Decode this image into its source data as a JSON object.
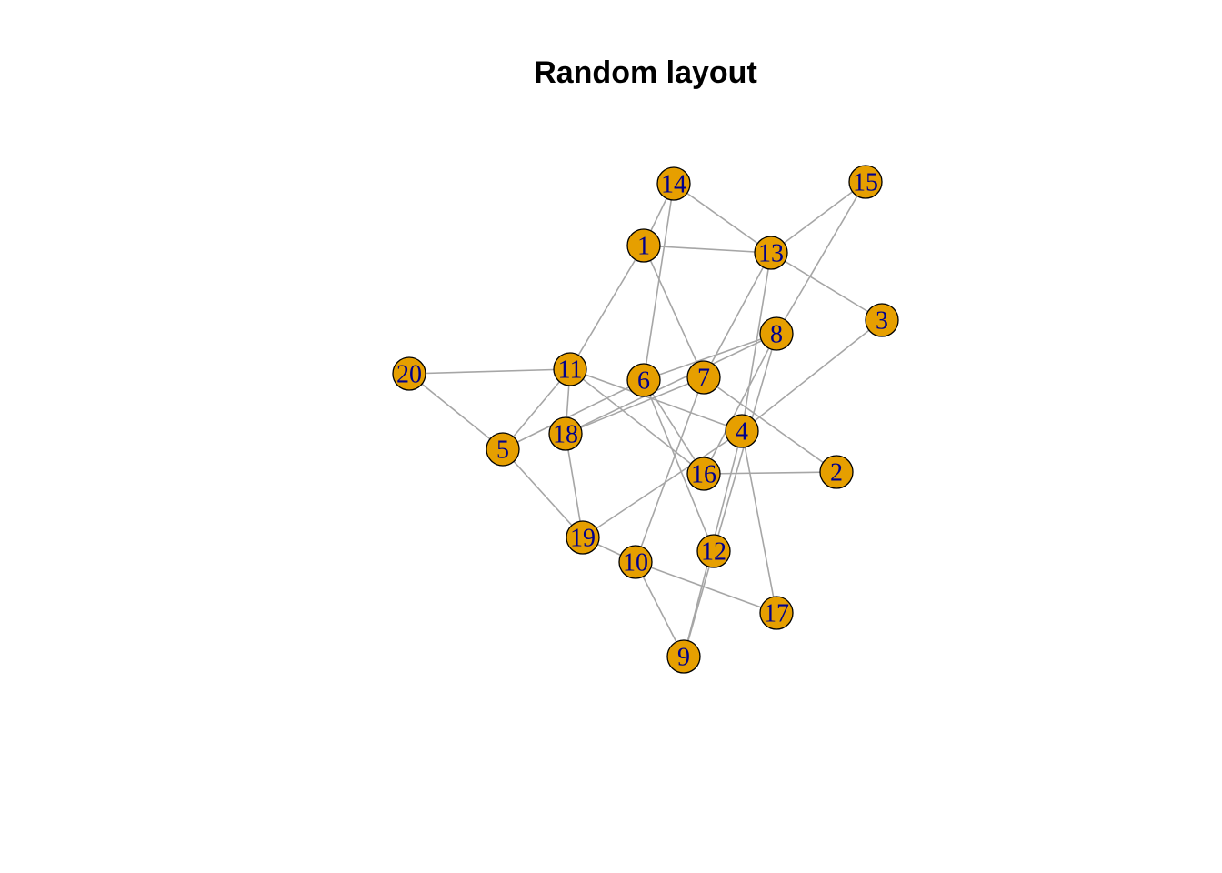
{
  "title": "Random layout",
  "colors": {
    "node_fill": "#E69F00",
    "node_stroke": "#000000",
    "label": "#00008B",
    "edge": "#A6A6A6"
  },
  "nodes": [
    {
      "id": "1",
      "label": "1"
    },
    {
      "id": "2",
      "label": "2"
    },
    {
      "id": "3",
      "label": "3"
    },
    {
      "id": "4",
      "label": "4"
    },
    {
      "id": "5",
      "label": "5"
    },
    {
      "id": "6",
      "label": "6"
    },
    {
      "id": "7",
      "label": "7"
    },
    {
      "id": "8",
      "label": "8"
    },
    {
      "id": "9",
      "label": "9"
    },
    {
      "id": "10",
      "label": "10"
    },
    {
      "id": "11",
      "label": "11"
    },
    {
      "id": "12",
      "label": "12"
    },
    {
      "id": "13",
      "label": "13"
    },
    {
      "id": "14",
      "label": "14"
    },
    {
      "id": "15",
      "label": "15"
    },
    {
      "id": "16",
      "label": "16"
    },
    {
      "id": "17",
      "label": "17"
    },
    {
      "id": "18",
      "label": "18"
    },
    {
      "id": "19",
      "label": "19"
    },
    {
      "id": "20",
      "label": "20"
    }
  ],
  "edges": [
    [
      "14",
      "13"
    ],
    [
      "14",
      "1"
    ],
    [
      "14",
      "6"
    ],
    [
      "1",
      "13"
    ],
    [
      "1",
      "11"
    ],
    [
      "1",
      "7"
    ],
    [
      "15",
      "13"
    ],
    [
      "15",
      "8"
    ],
    [
      "13",
      "3"
    ],
    [
      "13",
      "7"
    ],
    [
      "13",
      "4"
    ],
    [
      "3",
      "4"
    ],
    [
      "8",
      "6"
    ],
    [
      "8",
      "18"
    ],
    [
      "8",
      "16"
    ],
    [
      "8",
      "12"
    ],
    [
      "20",
      "11"
    ],
    [
      "20",
      "5"
    ],
    [
      "11",
      "5"
    ],
    [
      "11",
      "18"
    ],
    [
      "11",
      "16"
    ],
    [
      "11",
      "4"
    ],
    [
      "6",
      "5"
    ],
    [
      "6",
      "16"
    ],
    [
      "6",
      "12"
    ],
    [
      "7",
      "18"
    ],
    [
      "7",
      "2"
    ],
    [
      "7",
      "10"
    ],
    [
      "18",
      "19"
    ],
    [
      "5",
      "19"
    ],
    [
      "4",
      "19"
    ],
    [
      "4",
      "17"
    ],
    [
      "4",
      "9"
    ],
    [
      "16",
      "2"
    ],
    [
      "10",
      "19"
    ],
    [
      "10",
      "17"
    ],
    [
      "10",
      "9"
    ],
    [
      "12",
      "9"
    ]
  ]
}
